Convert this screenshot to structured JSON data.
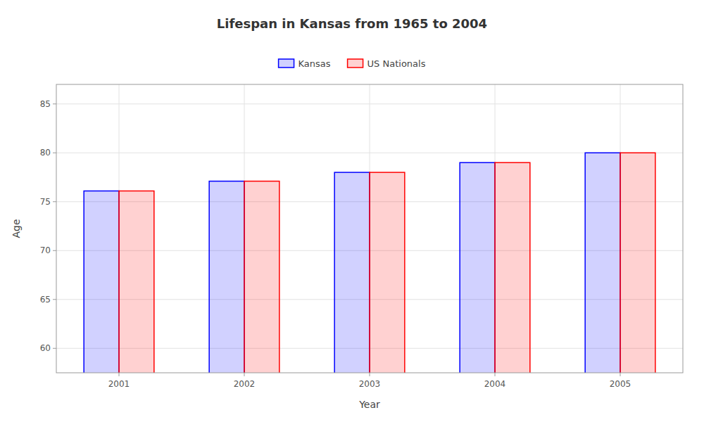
{
  "chart_data": {
    "type": "bar",
    "title": "Lifespan in Kansas from 1965 to 2004",
    "x_label": "Year",
    "y_label": "Age",
    "categories": [
      "2001",
      "2002",
      "2003",
      "2004",
      "2005"
    ],
    "series": [
      {
        "name": "Kansas",
        "color": "#0000ff",
        "values": [
          76.1,
          77.1,
          78.0,
          79.0,
          80.0
        ]
      },
      {
        "name": "US Nationals",
        "color": "#ff0000",
        "values": [
          76.1,
          77.1,
          78.0,
          79.0,
          80.0
        ]
      }
    ],
    "ylim": [
      57.5,
      87
    ],
    "yticks": [
      60,
      65,
      70,
      75,
      80,
      85
    ],
    "grid": true,
    "legend": "top"
  }
}
